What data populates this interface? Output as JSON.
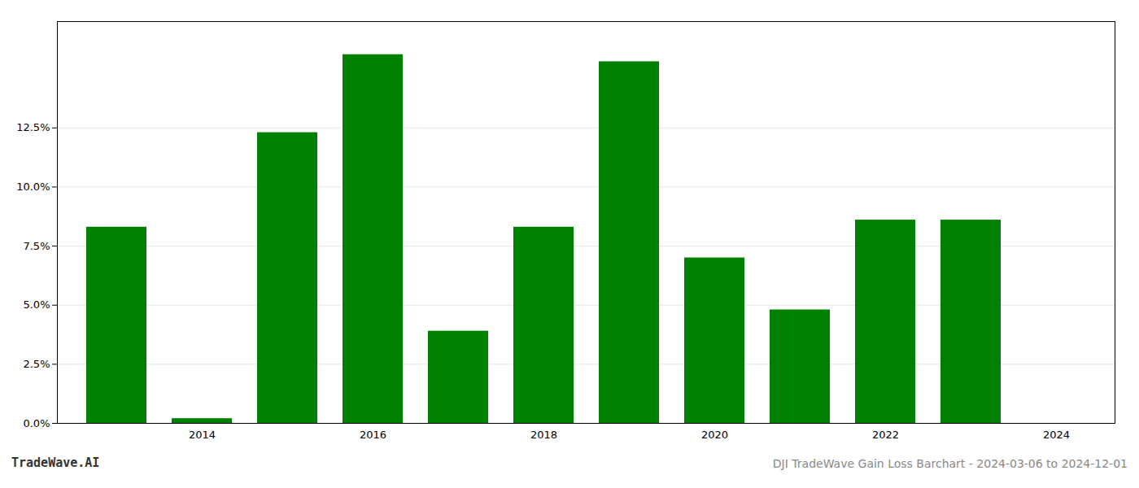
{
  "chart_data": {
    "type": "bar",
    "title": "DJI TradeWave Gain Loss Barchart - 2024-03-06 to 2024-12-01",
    "annotations": [
      "TradeWave.AI"
    ],
    "categories": [
      null,
      "2014",
      null,
      "2016",
      null,
      "2018",
      null,
      "2020",
      null,
      "2022",
      null,
      "2024"
    ],
    "values": [
      0.083,
      0.002,
      0.123,
      0.156,
      0.039,
      0.083,
      0.153,
      0.07,
      0.048,
      0.086,
      0.086,
      0.0
    ],
    "color": "#008000",
    "ylim": [
      0,
      0.17
    ],
    "yticks": [
      {
        "value": 0,
        "label": "0.0%"
      },
      {
        "value": 0.025,
        "label": "2.5%"
      },
      {
        "value": 0.05,
        "label": "5.0%"
      },
      {
        "value": 0.075,
        "label": "7.5%"
      },
      {
        "value": 0.1,
        "label": "10.0%"
      },
      {
        "value": 0.125,
        "label": "12.5%"
      }
    ],
    "grid": true
  }
}
